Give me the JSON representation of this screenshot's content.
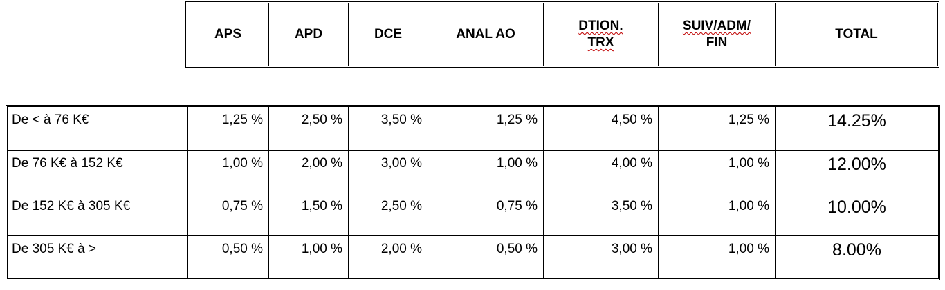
{
  "header": {
    "aps": "APS",
    "apd": "APD",
    "dce": "DCE",
    "anal_ao": "ANAL AO",
    "dtion_line1": "DTION.",
    "dtion_line2": "TRX",
    "suiv_line1": "SUIV/ADM/",
    "suiv_line2": "FIN",
    "total": "TOTAL"
  },
  "rows": [
    {
      "range": "De < à 76 K€",
      "aps": "1,25 %",
      "apd": "2,50 %",
      "dce": "3,50 %",
      "anal_ao": "1,25 %",
      "dtion_trx": "4,50 %",
      "suiv_adm_fin": "1,25 %",
      "total": "14.25%"
    },
    {
      "range": "De 76 K€ à 152 K€",
      "aps": "1,00 %",
      "apd": "2,00 %",
      "dce": "3,00 %",
      "anal_ao": "1,00 %",
      "dtion_trx": "4,00 %",
      "suiv_adm_fin": "1,00 %",
      "total": "12.00%"
    },
    {
      "range": "De 152 K€ à 305 K€",
      "aps": "0,75 %",
      "apd": "1,50 %",
      "dce": "2,50 %",
      "anal_ao": "0,75 %",
      "dtion_trx": "3,50 %",
      "suiv_adm_fin": "1,00 %",
      "total": "10.00%"
    },
    {
      "range": "De 305 K€ à >",
      "aps": "0,50 %",
      "apd": "1,00 %",
      "dce": "2,00 %",
      "anal_ao": "0,50 %",
      "dtion_trx": "3,00 %",
      "suiv_adm_fin": "1,00 %",
      "total": "8.00%"
    }
  ]
}
